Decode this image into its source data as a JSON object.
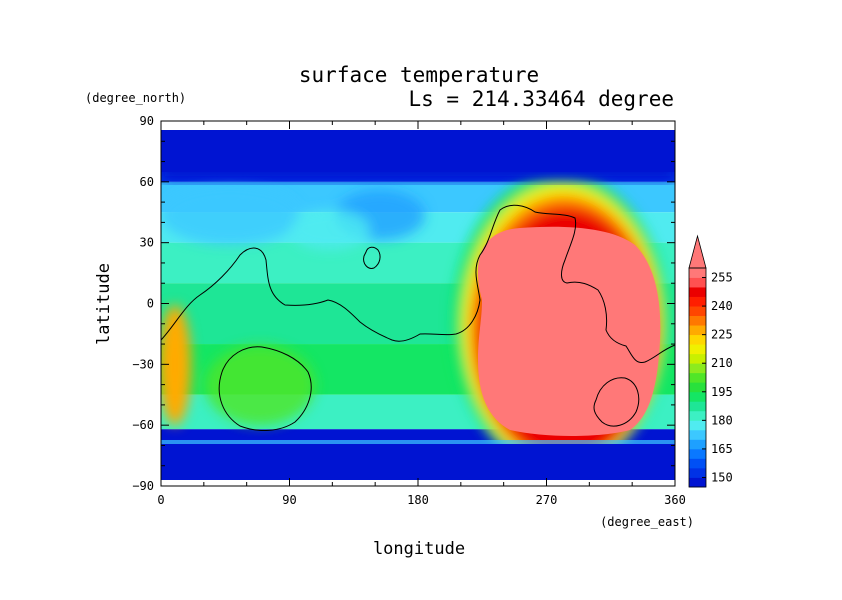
{
  "chart_data": {
    "type": "heatmap",
    "title": "surface temperature",
    "subtitle": "Ls = 214.33464 degree",
    "xlabel": "longitude",
    "ylabel": "latitude",
    "x_units": "(degree_east)",
    "y_units": "(degree_north)",
    "xlim": [
      0,
      360
    ],
    "ylim": [
      -90,
      90
    ],
    "data_lat_range": [
      -85,
      85
    ],
    "x_ticks": [
      0,
      90,
      180,
      270,
      360
    ],
    "y_ticks": [
      -90,
      -60,
      -30,
      0,
      30,
      60,
      90
    ],
    "colorbar": {
      "levels": [
        145,
        150,
        155,
        160,
        165,
        170,
        175,
        180,
        185,
        190,
        195,
        200,
        205,
        210,
        215,
        220,
        225,
        230,
        235,
        240,
        245,
        250,
        255
      ],
      "labels": [
        "150",
        "165",
        "180",
        "195",
        "210",
        "225",
        "240",
        "255"
      ],
      "label_values": [
        150,
        165,
        180,
        195,
        210,
        225,
        240,
        255
      ],
      "colors": [
        "#0014d2",
        "#0032e6",
        "#0050f5",
        "#0a78ff",
        "#1ea0ff",
        "#3cc8ff",
        "#50ebf0",
        "#3cf0c3",
        "#1ee696",
        "#14e664",
        "#28e13c",
        "#50e628",
        "#8ceb1e",
        "#c8f000",
        "#f0f000",
        "#ffd700",
        "#ffaa00",
        "#ff7800",
        "#ff4600",
        "#ff1e00",
        "#eb0000",
        "#ff5050",
        "#ff7878"
      ],
      "extend": "both"
    }
  }
}
